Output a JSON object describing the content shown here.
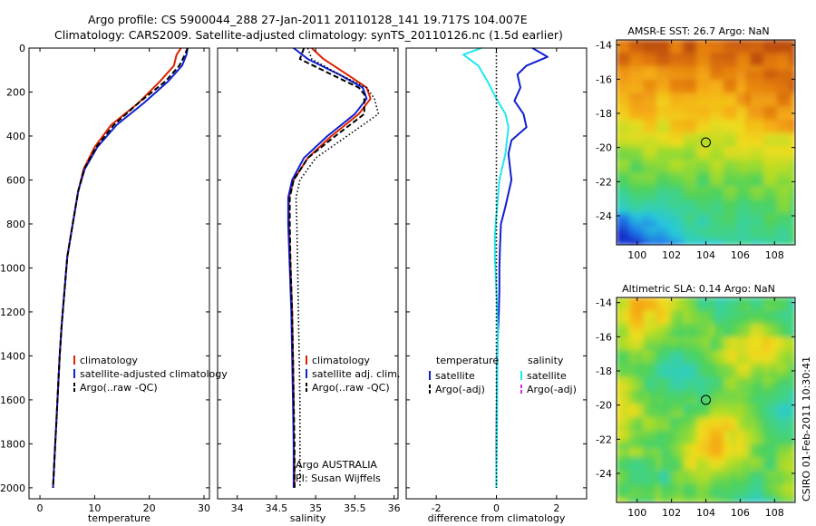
{
  "header": {
    "title_line1": "Argo profile: CS 5900044_288 27-Jan-2011 20110128_141 19.717S 104.007E",
    "title_line2": "Climatology: CARS2009. Satellite-adjusted climatology: synTS_20110126.nc (1.5d earlier)"
  },
  "side_label": "CSIRO 01-Feb-2011 10:30:41",
  "colors": {
    "red": "#dd2200",
    "blue": "#1020d0",
    "cyan": "#20e8ee",
    "black": "#000000",
    "magenta": "#dd22dd"
  },
  "chart_data": [
    {
      "id": "temperature",
      "type": "line",
      "xlabel": "temperature",
      "xlim": [
        -2,
        31
      ],
      "ylim": [
        2050,
        0
      ],
      "xticks": [
        0,
        10,
        20,
        30
      ],
      "yticks": [
        0,
        200,
        400,
        600,
        800,
        1000,
        1200,
        1400,
        1600,
        1800,
        2000
      ],
      "ytick_labels": [
        "0",
        "200",
        "400",
        "600",
        "800",
        "1000",
        "1200",
        "1400",
        "1600",
        "1800",
        "2000"
      ],
      "legend": [
        "climatology",
        "satellite-adjusted climatology",
        "Argo(..raw -QC)"
      ],
      "series": [
        {
          "name": "climatology",
          "color": "red",
          "style": "solid",
          "x": [
            25.8,
            25.0,
            24.5,
            22.0,
            18.0,
            13.0,
            10.0,
            8.0,
            7.0,
            6.0,
            5.0,
            4.5,
            4.0,
            3.6,
            3.3,
            3.0,
            2.8,
            2.6,
            2.4
          ],
          "y": [
            0,
            30,
            80,
            150,
            250,
            350,
            450,
            550,
            650,
            800,
            950,
            1100,
            1250,
            1400,
            1550,
            1700,
            1800,
            1900,
            2000
          ]
        },
        {
          "name": "satellite-adjusted climatology",
          "color": "blue",
          "style": "solid",
          "x": [
            27.0,
            26.8,
            26.0,
            23.5,
            19.0,
            14.0,
            10.5,
            8.2,
            7.0,
            6.0,
            5.0,
            4.5,
            4.0,
            3.6,
            3.3,
            3.0,
            2.8,
            2.6,
            2.4
          ],
          "y": [
            0,
            30,
            80,
            150,
            250,
            350,
            450,
            550,
            650,
            800,
            950,
            1100,
            1250,
            1400,
            1550,
            1700,
            1800,
            1900,
            2000
          ]
        },
        {
          "name": "Argo(..raw -QC)",
          "color": "black",
          "style": "dashed",
          "x": [
            27.0,
            26.5,
            25.5,
            23.0,
            18.0,
            13.5,
            10.3,
            8.1,
            7.0,
            6.0,
            5.0,
            4.5,
            4.0,
            3.6,
            3.3,
            3.0,
            2.8,
            2.6,
            2.4
          ],
          "y": [
            0,
            30,
            80,
            150,
            250,
            350,
            450,
            550,
            650,
            800,
            950,
            1100,
            1250,
            1400,
            1550,
            1700,
            1800,
            1900,
            2000
          ]
        }
      ]
    },
    {
      "id": "salinity",
      "type": "line",
      "xlabel": "salinity",
      "xlim": [
        33.75,
        36.05
      ],
      "ylim": [
        2050,
        0
      ],
      "xticks": [
        34,
        34.5,
        35,
        35.5,
        36
      ],
      "xtick_labels": [
        "34",
        "34.5",
        "35",
        "35.5",
        "36"
      ],
      "legend": [
        "climatology",
        "satellite adj. clim.",
        "Argo(..raw -QC)"
      ],
      "annotations": [
        "Argo AUSTRALIA",
        "PI: Susan Wijffels"
      ],
      "series": [
        {
          "name": "climatology",
          "color": "red",
          "style": "solid",
          "x": [
            34.95,
            35.1,
            35.4,
            35.65,
            35.7,
            35.55,
            35.2,
            34.9,
            34.72,
            34.66,
            34.66,
            34.68,
            34.7,
            34.71,
            34.72,
            34.72,
            34.73,
            34.73
          ],
          "y": [
            0,
            50,
            120,
            180,
            230,
            300,
            400,
            500,
            600,
            680,
            800,
            1000,
            1200,
            1400,
            1600,
            1800,
            1900,
            2000
          ]
        },
        {
          "name": "satellite adj. clim.",
          "color": "blue",
          "style": "solid",
          "x": [
            34.72,
            34.9,
            35.3,
            35.6,
            35.65,
            35.5,
            35.15,
            34.85,
            34.7,
            34.65,
            34.65,
            34.67,
            34.69,
            34.7,
            34.71,
            34.72,
            34.72,
            34.72
          ],
          "y": [
            0,
            50,
            120,
            180,
            230,
            300,
            400,
            500,
            600,
            680,
            800,
            1000,
            1200,
            1400,
            1600,
            1800,
            1900,
            2000
          ]
        },
        {
          "name": "Argo(..raw -QC)",
          "color": "black",
          "style": "dashed",
          "x": [
            34.85,
            34.8,
            35.2,
            35.55,
            35.62,
            35.62,
            35.25,
            34.9,
            34.72,
            34.67,
            34.67,
            34.68,
            34.7,
            34.71,
            34.72,
            34.73,
            34.73,
            34.73
          ],
          "y": [
            0,
            50,
            120,
            180,
            210,
            300,
            400,
            500,
            600,
            680,
            800,
            1000,
            1200,
            1400,
            1600,
            1800,
            1900,
            2000
          ]
        },
        {
          "name": "Argo dotted",
          "color": "black",
          "style": "dotted",
          "x": [
            34.9,
            34.95,
            35.3,
            35.65,
            35.75,
            35.8,
            35.4,
            35.0,
            34.8,
            34.75,
            34.76,
            34.77,
            34.78,
            34.79,
            34.8,
            34.8,
            34.8,
            34.8
          ],
          "y": [
            0,
            50,
            120,
            180,
            230,
            300,
            400,
            500,
            600,
            680,
            800,
            1000,
            1200,
            1400,
            1600,
            1800,
            1900,
            2000
          ]
        }
      ]
    },
    {
      "id": "difference",
      "type": "line",
      "xlabel": "difference from climatology",
      "xlim": [
        -3.0,
        3.0
      ],
      "ylim": [
        2050,
        0
      ],
      "xticks": [
        -2,
        0,
        2
      ],
      "legend_headers": [
        "temperature",
        "salinity"
      ],
      "legend": [
        "satellite",
        "Argo(-adj)",
        "satellite",
        "Argo(-adj)"
      ],
      "series": [
        {
          "name": "temperature satellite",
          "color": "blue",
          "style": "solid",
          "x": [
            1.2,
            1.7,
            1.0,
            0.7,
            0.8,
            0.6,
            0.9,
            1.0,
            0.5,
            0.4,
            0.45,
            0.5,
            0.4,
            0.3,
            0.15,
            0.12,
            0.1,
            0.1,
            0.08,
            0.05,
            0.03,
            0.02,
            0.01,
            0.0,
            0.0
          ],
          "y": [
            0,
            40,
            80,
            120,
            180,
            240,
            300,
            360,
            420,
            480,
            540,
            600,
            660,
            720,
            800,
            900,
            1000,
            1100,
            1200,
            1300,
            1400,
            1500,
            1700,
            1900,
            2000
          ]
        },
        {
          "name": "salinity satellite",
          "color": "cyan",
          "style": "solid",
          "x": [
            -0.5,
            -1.1,
            -0.6,
            -0.3,
            0.0,
            0.3,
            0.4,
            0.35,
            0.3,
            0.2,
            0.1,
            0.05,
            0.0,
            -0.05,
            -0.05,
            0.0,
            0.05,
            0.03,
            0.02,
            0.0,
            0.0
          ],
          "y": [
            0,
            30,
            80,
            150,
            230,
            300,
            360,
            420,
            480,
            540,
            600,
            680,
            760,
            850,
            950,
            1100,
            1300,
            1500,
            1700,
            1900,
            2000
          ]
        },
        {
          "name": "zero",
          "color": "black",
          "style": "dotted",
          "x": [
            0,
            0
          ],
          "y": [
            0,
            2000
          ]
        }
      ]
    },
    {
      "id": "sst_map",
      "type": "heatmap",
      "title": "AMSR-E SST: 26.7 Argo: NaN",
      "xlim": [
        98.8,
        109.2
      ],
      "ylim": [
        -25.7,
        -13.7
      ],
      "xticks": [
        100,
        102,
        104,
        106,
        108
      ],
      "yticks": [
        -14,
        -16,
        -18,
        -20,
        -22,
        -24
      ],
      "marker": {
        "lon": 104.0,
        "lat": -19.7
      }
    },
    {
      "id": "sla_map",
      "type": "heatmap",
      "title": "Altimetric SLA: 0.14 Argo: NaN",
      "xlim": [
        98.8,
        109.2
      ],
      "ylim": [
        -25.7,
        -13.7
      ],
      "xticks": [
        100,
        102,
        104,
        106,
        108
      ],
      "yticks": [
        -14,
        -16,
        -18,
        -20,
        -22,
        -24
      ],
      "marker": {
        "lon": 104.0,
        "lat": -19.7
      }
    }
  ]
}
